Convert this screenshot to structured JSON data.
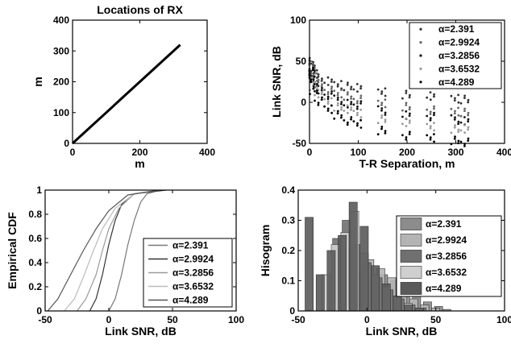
{
  "chart_data": [
    {
      "type": "line",
      "title": "Locations of RX",
      "xlabel": "m",
      "ylabel": "m",
      "xlim": [
        0,
        400
      ],
      "ylim": [
        0,
        400
      ],
      "xticks": [
        "0",
        "200",
        "400"
      ],
      "yticks": [
        "0",
        "100",
        "200",
        "300",
        "400"
      ],
      "series": [
        {
          "x": [
            0,
            50,
            100,
            150,
            200,
            250,
            320
          ],
          "y": [
            0,
            50,
            100,
            150,
            200,
            250,
            320
          ]
        }
      ],
      "colors": [
        "#000000"
      ]
    },
    {
      "type": "scatter",
      "title": "",
      "xlabel": "T-R Separation, m",
      "ylabel": "Link SNR, dB",
      "xlim": [
        0,
        400
      ],
      "ylim": [
        -50,
        100
      ],
      "xticks": [
        "0",
        "100",
        "200",
        "300",
        "400"
      ],
      "yticks": [
        "-50",
        "0",
        "50",
        "100"
      ],
      "legend_position": "top-right",
      "series": [
        {
          "name": "α=2.391",
          "x": [
            2,
            5,
            10,
            20,
            40,
            60,
            80,
            100,
            150,
            200,
            250,
            300,
            320
          ],
          "y": [
            50,
            42,
            35,
            30,
            25,
            22,
            20,
            17,
            13,
            10,
            7,
            5,
            4
          ]
        },
        {
          "name": "α=2.9924",
          "x": [
            2,
            5,
            10,
            20,
            40,
            60,
            80,
            100,
            150,
            200,
            250,
            300,
            320
          ],
          "y": [
            45,
            38,
            30,
            22,
            15,
            10,
            7,
            4,
            -2,
            -6,
            -9,
            -12,
            -13
          ]
        },
        {
          "name": "α=3.2856",
          "x": [
            2,
            5,
            10,
            20,
            40,
            60,
            80,
            100,
            150,
            200,
            250,
            300,
            320
          ],
          "y": [
            42,
            33,
            25,
            16,
            8,
            3,
            -1,
            -4,
            -10,
            -15,
            -18,
            -21,
            -22
          ]
        },
        {
          "name": "α=3.6532",
          "x": [
            2,
            5,
            10,
            20,
            40,
            60,
            80,
            100,
            150,
            200,
            250,
            300,
            320
          ],
          "y": [
            40,
            30,
            20,
            10,
            1,
            -5,
            -9,
            -13,
            -20,
            -25,
            -29,
            -32,
            -33
          ]
        },
        {
          "name": "α=4.289",
          "x": [
            2,
            5,
            10,
            20,
            40,
            60,
            80,
            100,
            150,
            200,
            250,
            300,
            320
          ],
          "y": [
            38,
            26,
            14,
            2,
            -9,
            -16,
            -22,
            -27,
            -35,
            -40,
            -44,
            -47,
            -48
          ]
        }
      ],
      "colors": [
        "#333333",
        "#666666",
        "#111111",
        "#999999",
        "#000000"
      ]
    },
    {
      "type": "line",
      "title": "",
      "xlabel": "Link SNR, dB",
      "ylabel": "Empirical CDF",
      "xlim": [
        -50,
        100
      ],
      "ylim": [
        0,
        1
      ],
      "xticks": [
        "-50",
        "0",
        "50",
        "100"
      ],
      "yticks": [
        "0",
        "0.2",
        "0.4",
        "0.6",
        "0.8",
        "1"
      ],
      "legend_position": "bottom-right",
      "series": [
        {
          "name": "α=2.391",
          "x": [
            0,
            5,
            10,
            15,
            20,
            25,
            30,
            40
          ],
          "y": [
            0,
            0.1,
            0.3,
            0.55,
            0.75,
            0.9,
            0.97,
            1
          ]
        },
        {
          "name": "α=2.9924",
          "x": [
            -15,
            -10,
            -5,
            0,
            5,
            10,
            20,
            45
          ],
          "y": [
            0,
            0.1,
            0.3,
            0.55,
            0.75,
            0.88,
            0.97,
            1
          ]
        },
        {
          "name": "α=3.2856",
          "x": [
            -25,
            -18,
            -10,
            -5,
            0,
            8,
            20,
            40
          ],
          "y": [
            0,
            0.1,
            0.3,
            0.5,
            0.68,
            0.85,
            0.97,
            1
          ]
        },
        {
          "name": "α=3.6532",
          "x": [
            -35,
            -27,
            -20,
            -12,
            -5,
            5,
            20,
            40
          ],
          "y": [
            0,
            0.1,
            0.28,
            0.5,
            0.68,
            0.85,
            0.97,
            1
          ]
        },
        {
          "name": "α=4.289",
          "x": [
            -48,
            -40,
            -30,
            -20,
            -10,
            0,
            15,
            40
          ],
          "y": [
            0,
            0.1,
            0.3,
            0.5,
            0.68,
            0.83,
            0.96,
            1
          ]
        }
      ],
      "colors": [
        "#777777",
        "#333333",
        "#999999",
        "#bbbbbb",
        "#555555"
      ]
    },
    {
      "type": "bar",
      "title": "",
      "xlabel": "Link SNR, dB",
      "ylabel": "Hisogram",
      "xlim": [
        -50,
        100
      ],
      "ylim": [
        0,
        0.4
      ],
      "xticks": [
        "-50",
        "0",
        "50",
        "100"
      ],
      "yticks": [
        "0",
        "0.1",
        "0.2",
        "0.3",
        "0.4"
      ],
      "legend_position": "top-right",
      "series": [
        {
          "name": "α=2.391",
          "x": [
            -2,
            5,
            12,
            20,
            28,
            36,
            44,
            52,
            58
          ],
          "y": [
            0.05,
            0.1,
            0.12,
            0.1,
            0.08,
            0.05,
            0.03,
            0.015,
            0.005
          ]
        },
        {
          "name": "α=2.9924",
          "x": [
            -12,
            -5,
            2,
            10,
            18,
            26,
            34,
            42,
            50
          ],
          "y": [
            0.09,
            0.13,
            0.17,
            0.14,
            0.11,
            0.07,
            0.04,
            0.02,
            0.01
          ]
        },
        {
          "name": "α=3.2856",
          "x": [
            -22,
            -15,
            -8,
            0,
            8,
            16,
            24,
            32,
            40
          ],
          "y": [
            0.24,
            0.3,
            0.22,
            0.16,
            0.11,
            0.07,
            0.04,
            0.02,
            0.01
          ]
        },
        {
          "name": "α=3.6532",
          "x": [
            -30,
            -23,
            -16,
            -9,
            -2,
            6,
            14,
            22,
            30,
            38
          ],
          "y": [
            0.12,
            0.22,
            0.26,
            0.33,
            0.19,
            0.12,
            0.08,
            0.05,
            0.025,
            0.01
          ]
        },
        {
          "name": "α=4.289",
          "x": [
            -42,
            -34,
            -26,
            -18,
            -10,
            -2,
            6,
            14,
            22,
            30,
            38
          ],
          "y": [
            0.31,
            0.12,
            0.2,
            0.25,
            0.36,
            0.28,
            0.15,
            0.09,
            0.05,
            0.02,
            0.01
          ]
        }
      ],
      "colors": [
        "#8c8c8c",
        "#b4b4b4",
        "#707070",
        "#d0d0d0",
        "#5a5a5a"
      ]
    }
  ]
}
